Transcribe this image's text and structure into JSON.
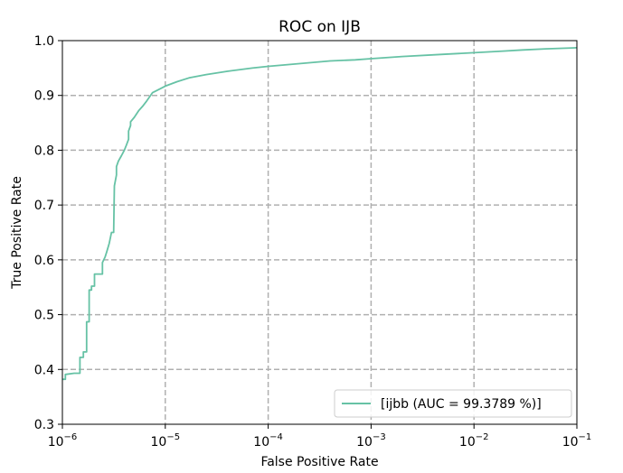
{
  "chart_data": {
    "type": "line",
    "title": "ROC on IJB",
    "xlabel": "False Positive Rate",
    "ylabel": "True Positive Rate",
    "x_scale": "log",
    "xlim": [
      1e-06,
      0.1
    ],
    "ylim": [
      0.3,
      1.0
    ],
    "x_ticks": [
      {
        "value": 1e-06,
        "base": "10",
        "exp": "−6"
      },
      {
        "value": 1e-05,
        "base": "10",
        "exp": "−5"
      },
      {
        "value": 0.0001,
        "base": "10",
        "exp": "−4"
      },
      {
        "value": 0.001,
        "base": "10",
        "exp": "−3"
      },
      {
        "value": 0.01,
        "base": "10",
        "exp": "−2"
      },
      {
        "value": 0.1,
        "base": "10",
        "exp": "−1"
      }
    ],
    "y_ticks": [
      {
        "value": 0.3,
        "label": "0.3"
      },
      {
        "value": 0.4,
        "label": "0.4"
      },
      {
        "value": 0.5,
        "label": "0.5"
      },
      {
        "value": 0.6,
        "label": "0.6"
      },
      {
        "value": 0.7,
        "label": "0.7"
      },
      {
        "value": 0.8,
        "label": "0.8"
      },
      {
        "value": 0.9,
        "label": "0.9"
      },
      {
        "value": 1.0,
        "label": "1.0"
      }
    ],
    "grid": true,
    "legend_position": "lower-right",
    "series": [
      {
        "name": "[ijbb (AUC = 99.3789 %)]",
        "color": "#66c2a5",
        "x": [
          1e-06,
          1.07e-06,
          1.07e-06,
          1.3e-06,
          1.48e-06,
          1.48e-06,
          1.6e-06,
          1.6e-06,
          1.72e-06,
          1.72e-06,
          1.82e-06,
          1.82e-06,
          1.92e-06,
          1.92e-06,
          2.05e-06,
          2.05e-06,
          2.45e-06,
          2.45e-06,
          2.6e-06,
          2.7e-06,
          2.85e-06,
          3e-06,
          3.15e-06,
          3.2e-06,
          3.2e-06,
          3.35e-06,
          3.35e-06,
          3.5e-06,
          3.75e-06,
          4e-06,
          4.2e-06,
          4.4e-06,
          4.4e-06,
          4.6e-06,
          4.6e-06,
          5e-06,
          5.5e-06,
          6e-06,
          6.6e-06,
          7.5e-06,
          8.5e-06,
          1e-05,
          1.3e-05,
          1.7e-05,
          2.5e-05,
          4e-05,
          7e-05,
          0.0001,
          0.0002,
          0.0004,
          0.0007,
          0.001,
          0.002,
          0.005,
          0.01,
          0.02,
          0.03,
          0.05,
          0.1
        ],
        "y": [
          0.382,
          0.382,
          0.391,
          0.393,
          0.393,
          0.422,
          0.422,
          0.432,
          0.432,
          0.487,
          0.487,
          0.545,
          0.545,
          0.552,
          0.552,
          0.574,
          0.574,
          0.595,
          0.605,
          0.615,
          0.63,
          0.65,
          0.65,
          0.735,
          0.735,
          0.755,
          0.77,
          0.78,
          0.79,
          0.8,
          0.81,
          0.82,
          0.835,
          0.845,
          0.852,
          0.86,
          0.872,
          0.88,
          0.89,
          0.905,
          0.91,
          0.917,
          0.925,
          0.932,
          0.938,
          0.944,
          0.95,
          0.953,
          0.958,
          0.963,
          0.965,
          0.967,
          0.971,
          0.975,
          0.978,
          0.981,
          0.983,
          0.985,
          0.987
        ]
      }
    ]
  }
}
